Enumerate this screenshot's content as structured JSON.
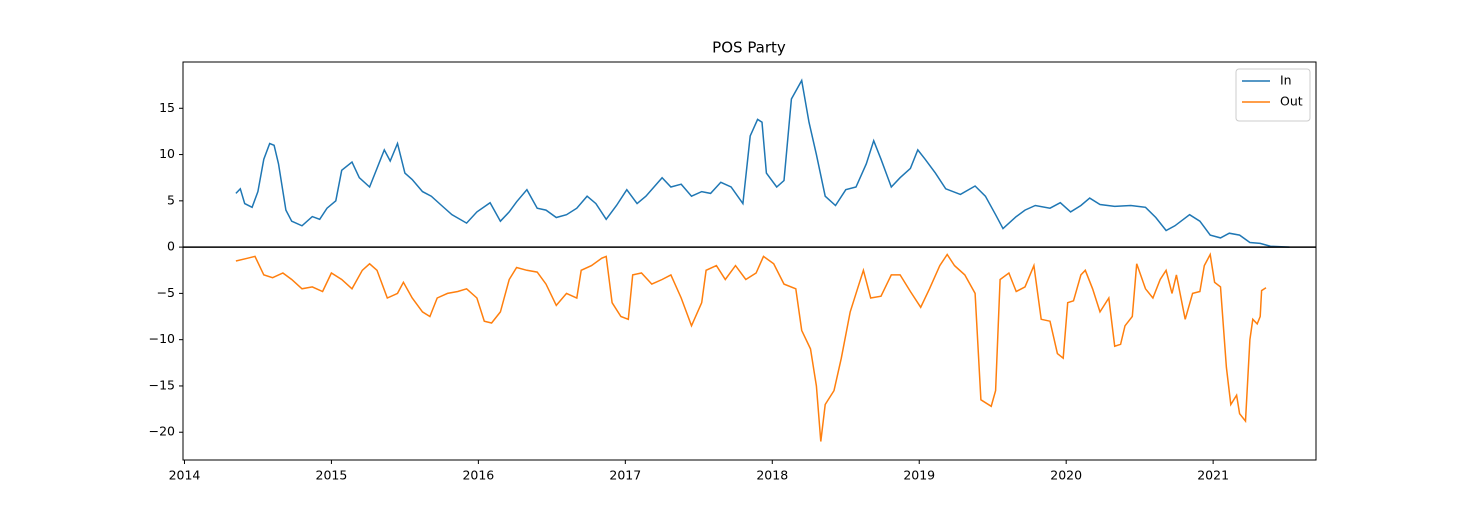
{
  "chart_data": {
    "type": "line",
    "title": "POS Party",
    "xlim": [
      2013.99,
      2021.7
    ],
    "xticks": [
      2014,
      2015,
      2016,
      2017,
      2018,
      2019,
      2020,
      2021
    ],
    "ylim": [
      -23,
      20
    ],
    "yticks": [
      {
        "value": -20,
        "label": "−20"
      },
      {
        "value": -15,
        "label": "−15"
      },
      {
        "value": -10,
        "label": "−10"
      },
      {
        "value": -5,
        "label": "−5"
      },
      0,
      5,
      10,
      15
    ],
    "hline": 0,
    "hline_color": "#000000",
    "legend": "upper right",
    "series": [
      {
        "name": "In",
        "color": "#1f77b4",
        "x": [
          2014.35,
          2014.38,
          2014.41,
          2014.46,
          2014.5,
          2014.54,
          2014.58,
          2014.61,
          2014.64,
          2014.69,
          2014.73,
          2014.8,
          2014.87,
          2014.92,
          2014.97,
          2015.03,
          2015.07,
          2015.14,
          2015.19,
          2015.26,
          2015.31,
          2015.36,
          2015.4,
          2015.45,
          2015.5,
          2015.55,
          2015.62,
          2015.68,
          2015.75,
          2015.82,
          2015.92,
          2015.99,
          2016.08,
          2016.15,
          2016.21,
          2016.26,
          2016.33,
          2016.4,
          2016.46,
          2016.53,
          2016.6,
          2016.67,
          2016.74,
          2016.8,
          2016.87,
          2016.94,
          2017.01,
          2017.08,
          2017.14,
          2017.25,
          2017.31,
          2017.38,
          2017.45,
          2017.52,
          2017.58,
          2017.65,
          2017.72,
          2017.8,
          2017.85,
          2017.9,
          2017.93,
          2017.96,
          2018.03,
          2018.08,
          2018.13,
          2018.2,
          2018.25,
          2018.3,
          2018.36,
          2018.43,
          2018.5,
          2018.57,
          2018.64,
          2018.69,
          2018.74,
          2018.81,
          2018.87,
          2018.94,
          2018.99,
          2019.04,
          2019.11,
          2019.18,
          2019.28,
          2019.38,
          2019.45,
          2019.52,
          2019.57,
          2019.66,
          2019.72,
          2019.79,
          2019.89,
          2019.96,
          2020.03,
          2020.1,
          2020.16,
          2020.23,
          2020.33,
          2020.44,
          2020.54,
          2020.61,
          2020.68,
          2020.74,
          2020.84,
          2020.91,
          2020.98,
          2021.05,
          2021.11,
          2021.18,
          2021.25,
          2021.32,
          2021.39,
          2021.52
        ],
        "values": [
          5.8,
          6.3,
          4.7,
          4.3,
          6.0,
          9.5,
          11.2,
          11.0,
          9.0,
          4.0,
          2.8,
          2.3,
          3.3,
          3.0,
          4.2,
          5.0,
          8.3,
          9.2,
          7.5,
          6.5,
          8.5,
          10.5,
          9.3,
          11.2,
          8.0,
          7.3,
          6.0,
          5.5,
          4.5,
          3.5,
          2.6,
          3.8,
          4.8,
          2.8,
          3.8,
          4.9,
          6.2,
          4.2,
          4.0,
          3.2,
          3.5,
          4.2,
          5.5,
          4.7,
          3.0,
          4.5,
          6.2,
          4.7,
          5.5,
          7.5,
          6.5,
          6.8,
          5.5,
          6.0,
          5.8,
          7.0,
          6.5,
          4.7,
          12.0,
          13.8,
          13.5,
          8.0,
          6.5,
          7.2,
          16.0,
          18.0,
          13.5,
          10.0,
          5.5,
          4.5,
          6.2,
          6.5,
          9.0,
          11.5,
          9.5,
          6.5,
          7.5,
          8.5,
          10.5,
          9.5,
          8.0,
          6.3,
          5.7,
          6.6,
          5.5,
          3.5,
          2.0,
          3.3,
          4.0,
          4.5,
          4.2,
          4.8,
          3.8,
          4.5,
          5.3,
          4.6,
          4.4,
          4.5,
          4.3,
          3.2,
          1.8,
          2.3,
          3.5,
          2.8,
          1.3,
          1.0,
          1.5,
          1.3,
          0.5,
          0.4,
          0.1,
          0
        ]
      },
      {
        "name": "Out",
        "color": "#ff7f0e",
        "x": [
          2014.35,
          2014.43,
          2014.48,
          2014.54,
          2014.6,
          2014.67,
          2014.73,
          2014.8,
          2014.87,
          2014.94,
          2015.0,
          2015.07,
          2015.14,
          2015.21,
          2015.26,
          2015.31,
          2015.38,
          2015.45,
          2015.49,
          2015.55,
          2015.62,
          2015.67,
          2015.72,
          2015.79,
          2015.86,
          2015.92,
          2015.99,
          2016.04,
          2016.09,
          2016.15,
          2016.21,
          2016.26,
          2016.33,
          2016.4,
          2016.46,
          2016.53,
          2016.6,
          2016.67,
          2016.7,
          2016.77,
          2016.84,
          2016.87,
          2016.91,
          2016.97,
          2017.02,
          2017.05,
          2017.11,
          2017.18,
          2017.25,
          2017.31,
          2017.38,
          2017.45,
          2017.52,
          2017.55,
          2017.62,
          2017.68,
          2017.75,
          2017.82,
          2017.89,
          2017.94,
          2018.01,
          2018.08,
          2018.16,
          2018.2,
          2018.26,
          2018.3,
          2018.33,
          2018.36,
          2018.42,
          2018.47,
          2018.53,
          2018.58,
          2018.62,
          2018.67,
          2018.74,
          2018.81,
          2018.87,
          2018.94,
          2019.01,
          2019.07,
          2019.14,
          2019.19,
          2019.24,
          2019.31,
          2019.38,
          2019.42,
          2019.49,
          2019.52,
          2019.55,
          2019.61,
          2019.66,
          2019.72,
          2019.78,
          2019.83,
          2019.89,
          2019.94,
          2019.98,
          2020.01,
          2020.05,
          2020.1,
          2020.13,
          2020.18,
          2020.23,
          2020.29,
          2020.33,
          2020.37,
          2020.4,
          2020.45,
          2020.48,
          2020.54,
          2020.59,
          2020.64,
          2020.68,
          2020.72,
          2020.75,
          2020.81,
          2020.86,
          2020.91,
          2020.94,
          2020.98,
          2021.01,
          2021.05,
          2021.09,
          2021.12,
          2021.16,
          2021.18,
          2021.22,
          2021.25,
          2021.27,
          2021.3,
          2021.32,
          2021.33,
          2021.36
        ],
        "values": [
          -1.5,
          -1.2,
          -1.0,
          -3.0,
          -3.3,
          -2.8,
          -3.5,
          -4.5,
          -4.3,
          -4.8,
          -2.8,
          -3.5,
          -4.5,
          -2.5,
          -1.8,
          -2.5,
          -5.5,
          -5.0,
          -3.8,
          -5.5,
          -7.0,
          -7.5,
          -5.5,
          -5.0,
          -4.8,
          -4.5,
          -5.5,
          -8.0,
          -8.2,
          -7.0,
          -3.5,
          -2.2,
          -2.5,
          -2.7,
          -4.0,
          -6.3,
          -5.0,
          -5.5,
          -2.5,
          -2.0,
          -1.2,
          -1.0,
          -6.0,
          -7.5,
          -7.8,
          -3.0,
          -2.8,
          -4.0,
          -3.5,
          -3.0,
          -5.5,
          -8.5,
          -6.0,
          -2.5,
          -2.0,
          -3.5,
          -2.0,
          -3.5,
          -2.8,
          -1.0,
          -1.8,
          -4.0,
          -4.5,
          -9.0,
          -11.0,
          -15.0,
          -21.0,
          -17.0,
          -15.5,
          -12.0,
          -7.0,
          -4.5,
          -2.5,
          -5.5,
          -5.3,
          -3.0,
          -3.0,
          -4.8,
          -6.5,
          -4.5,
          -2.0,
          -0.8,
          -2.0,
          -3.0,
          -5.0,
          -16.5,
          -17.2,
          -15.5,
          -3.5,
          -2.8,
          -4.8,
          -4.3,
          -2.0,
          -7.8,
          -8.0,
          -11.5,
          -12.0,
          -6.0,
          -5.8,
          -3.0,
          -2.5,
          -4.5,
          -7.0,
          -5.5,
          -10.7,
          -10.5,
          -8.5,
          -7.5,
          -1.8,
          -4.5,
          -5.5,
          -3.5,
          -2.5,
          -5.0,
          -3.0,
          -7.8,
          -5.0,
          -4.8,
          -2.0,
          -0.8,
          -3.8,
          -4.3,
          -13.0,
          -17.0,
          -16.0,
          -18.0,
          -18.8,
          -10.0,
          -7.8,
          -8.3,
          -7.5,
          -4.7,
          -4.4
        ]
      }
    ]
  }
}
